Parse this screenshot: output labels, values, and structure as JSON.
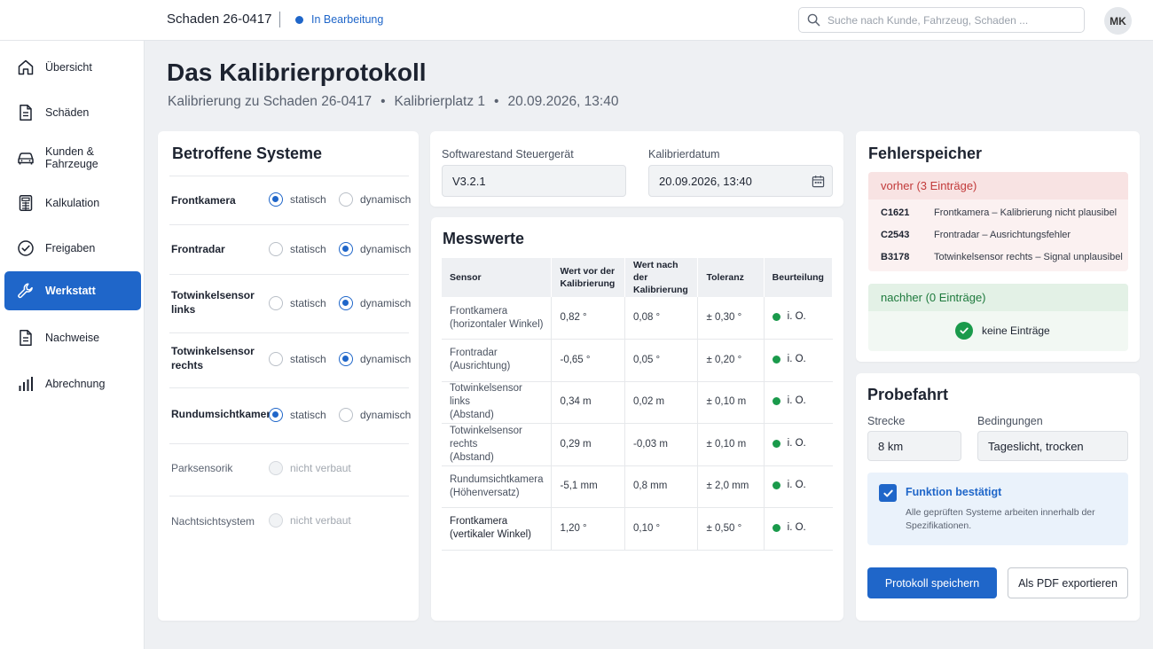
{
  "topbar": {
    "case_id": "Schaden 26-0417",
    "status": "In Bearbeitung",
    "search_placeholder": "Suche nach Kunde, Fahrzeug, Schaden ...",
    "user_initials": "MK",
    "status_color": "#1f66c9"
  },
  "sidebar": {
    "items": [
      {
        "label": "Übersicht",
        "icon": "home-icon"
      },
      {
        "label": "Schäden",
        "icon": "document-icon"
      },
      {
        "label": "Kunden & Fahrzeuge",
        "icon": "car-icon"
      },
      {
        "label": "Kalkulation",
        "icon": "calculator-icon"
      },
      {
        "label": "Freigaben",
        "icon": "check-circle-icon"
      },
      {
        "label": "Werkstatt",
        "icon": "wrench-icon",
        "active": true
      },
      {
        "label": "Nachweise",
        "icon": "document-icon"
      },
      {
        "label": "Abrechnung",
        "icon": "bar-chart-icon"
      }
    ]
  },
  "header": {
    "title": "Das Kalibrierprotokoll",
    "subtitle_case": "Kalibrierung zu Schaden 26-0417",
    "subtitle_place": "Kalibrierplatz 1",
    "subtitle_date": "20.09.2026, 13:40",
    "separator": "•"
  },
  "systems": {
    "title": "Betroffene Systeme",
    "label_static": "statisch",
    "label_dynamic": "dynamisch",
    "label_not_installed": "nicht verbaut",
    "rows": [
      {
        "name": "Frontkamera",
        "selected": "statisch"
      },
      {
        "name": "Frontradar",
        "selected": "dynamisch"
      },
      {
        "name": "Totwinkelsensor links",
        "selected": "dynamisch"
      },
      {
        "name": "Totwinkelsensor rechts",
        "selected": "dynamisch"
      },
      {
        "name": "Rundumsichtkamera",
        "selected": "statisch"
      },
      {
        "name": "Parksensorik",
        "selected": "nicht verbaut"
      },
      {
        "name": "Nachtsichtsystem",
        "selected": "nicht verbaut"
      }
    ]
  },
  "software": {
    "label": "Softwarestand Steuergerät",
    "value": "V3.2.1",
    "date_label": "Kalibrierdatum",
    "date_value": "20.09.2026, 13:40"
  },
  "messwerte": {
    "title": "Messwerte",
    "columns": [
      "Sensor",
      "Wert vor der Kalibrierung",
      "Wert nach der Kalibrierung",
      "Toleranz",
      "Beurteilung"
    ],
    "rows": [
      {
        "sensor": "Frontkamera",
        "detail": "(horizontaler Winkel)",
        "before": "0,82 °",
        "after": "0,08 °",
        "tolerance": "± 0,30 °",
        "rating": "i. O."
      },
      {
        "sensor": "Frontradar",
        "detail": "(Ausrichtung)",
        "before": "-0,65 °",
        "after": "0,05 °",
        "tolerance": "± 0,20 °",
        "rating": "i. O."
      },
      {
        "sensor": "Totwinkelsensor links",
        "detail": "(Abstand)",
        "before": "0,34 m",
        "after": "0,02 m",
        "tolerance": "± 0,10 m",
        "rating": "i. O."
      },
      {
        "sensor": "Totwinkelsensor rechts",
        "detail": "(Abstand)",
        "before": "0,29 m",
        "after": "-0,03 m",
        "tolerance": "± 0,10 m",
        "rating": "i. O."
      },
      {
        "sensor": "Rundumsichtkamera",
        "detail": "(Höhenversatz)",
        "before": "-5,1 mm",
        "after": "0,8 mm",
        "tolerance": "± 2,0 mm",
        "rating": "i. O."
      },
      {
        "sensor": "Frontkamera",
        "detail": "(vertikaler Winkel)",
        "before": "1,20 °",
        "after": "0,10 °",
        "tolerance": "± 0,50 °",
        "rating": "i. O."
      }
    ],
    "ok_color": "#1a9a4b"
  },
  "fehlerspeicher": {
    "title": "Fehlerspeicher",
    "before_label": "vorher (3 Einträge)",
    "before_items": [
      {
        "code": "C1621",
        "desc": "Frontkamera – Kalibrierung nicht plausibel"
      },
      {
        "code": "C2543",
        "desc": "Frontradar – Ausrichtungsfehler"
      },
      {
        "code": "B3178",
        "desc": "Totwinkelsensor rechts – Signal unplausibel"
      }
    ],
    "after_label": "nachher (0 Einträge)",
    "no_entries": "keine Einträge",
    "before_color": "#c23a3a",
    "after_color": "#1e7a3d"
  },
  "probefahrt": {
    "title": "Probefahrt",
    "route_label": "Strecke",
    "route_value": "8 km",
    "conditions_label": "Bedingungen",
    "conditions_value": "Tageslicht, trocken",
    "confirm_title": "Funktion bestätigt",
    "confirm_desc": "Alle geprüften Systeme arbeiten innerhalb der Spezifikationen.",
    "save_label": "Protokoll speichern",
    "export_label": "Als PDF exportieren"
  }
}
